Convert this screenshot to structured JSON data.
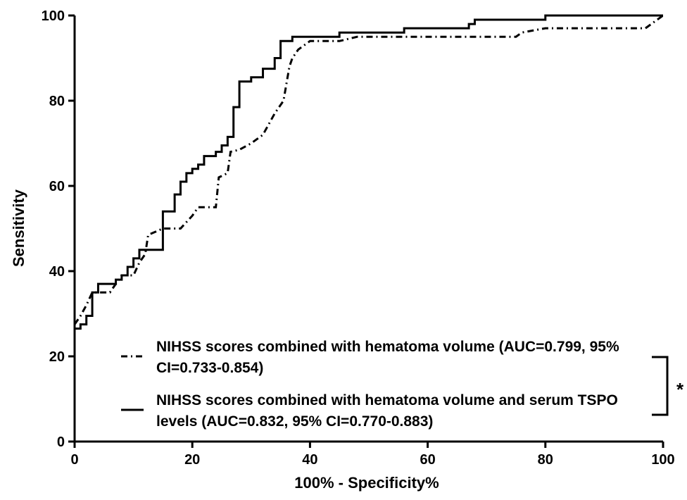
{
  "chart_data": {
    "type": "line",
    "x_label": "100% - Specificity%",
    "y_label": "Sensitivity",
    "xlim": [
      0,
      100
    ],
    "ylim": [
      0,
      100
    ],
    "xticks": [
      0,
      20,
      40,
      60,
      80,
      100
    ],
    "yticks": [
      0,
      20,
      40,
      60,
      80,
      100
    ],
    "grid": false,
    "legend": "bottom-right",
    "annotation": "*",
    "series": [
      {
        "name": "NIHSS scores combined with hematoma volume (AUC=0.799, 95% CI=0.733-0.854)",
        "color": "#000000",
        "line_style": "dashdot",
        "x": [
          0,
          1,
          2,
          3,
          6,
          7,
          8,
          10,
          11,
          12,
          12.5,
          15,
          18,
          20,
          21,
          24,
          24.5,
          26,
          26.5,
          28,
          30,
          32,
          34,
          35.5,
          36,
          36.5,
          37,
          38,
          40,
          45,
          48,
          75,
          76,
          80,
          97,
          99,
          100
        ],
        "values": [
          27.5,
          29.5,
          32,
          35,
          35,
          37,
          39,
          39,
          42,
          44,
          48.5,
          50,
          50,
          53,
          55,
          55,
          62,
          63,
          68,
          68.5,
          70,
          72,
          77,
          80,
          84,
          88,
          90,
          92,
          94,
          94,
          95,
          95,
          96,
          97,
          97,
          99,
          100
        ]
      },
      {
        "name": "NIHSS scores combined with hematoma volume and serum TSPO levels (AUC=0.832, 95% CI=0.770-0.883)",
        "color": "#000000",
        "line_style": "solid",
        "x": [
          0,
          1,
          1,
          2,
          2,
          3,
          3,
          4,
          4,
          7,
          7,
          8,
          8,
          9,
          9,
          10,
          10,
          11,
          11,
          15,
          15,
          17,
          17,
          18,
          18,
          19,
          19,
          20,
          20,
          21,
          21,
          22,
          22,
          24,
          24,
          25,
          25,
          26,
          26,
          27,
          27,
          28,
          28,
          30,
          30,
          32,
          32,
          34,
          34,
          35,
          35,
          37,
          37,
          45,
          45,
          56,
          56,
          67,
          67,
          68,
          68,
          80,
          80,
          100
        ],
        "values": [
          26.5,
          26.5,
          27.5,
          27.5,
          29.5,
          29.5,
          35,
          35,
          37,
          37,
          38,
          38,
          39,
          39,
          41,
          41,
          43,
          43,
          45,
          45,
          54,
          54,
          58,
          58,
          61,
          61,
          63,
          63,
          64,
          64,
          65,
          65,
          67,
          67,
          68,
          68,
          69.5,
          69.5,
          71.5,
          71.5,
          78.5,
          78.5,
          84.5,
          84.5,
          85.5,
          85.5,
          87.5,
          87.5,
          90,
          90,
          94,
          94,
          95,
          95,
          96,
          96,
          97,
          97,
          98,
          98,
          99,
          99,
          100,
          100
        ]
      }
    ]
  }
}
